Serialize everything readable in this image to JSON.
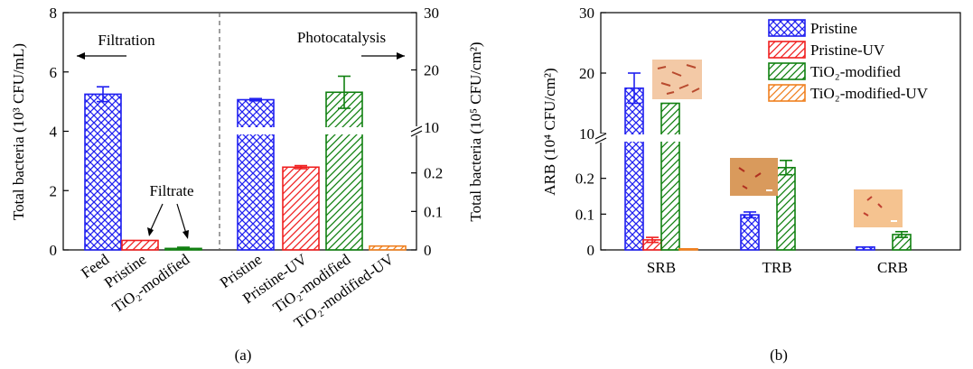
{
  "colors": {
    "blue": "#2020f0",
    "red": "#f02020",
    "green": "#108010",
    "orange": "#f08020",
    "axis": "#000000",
    "divider": "#606060"
  },
  "chart_data": [
    {
      "id": "a",
      "type": "bar",
      "caption": "(a)",
      "ylabel_left": "Total bacteria (10³ CFU/mL)",
      "ylabel_right": "Total bacteria (10⁵ CFU/cm²)",
      "left_ylim": [
        0,
        8
      ],
      "left_ticks": [
        "0",
        "2",
        "4",
        "6",
        "8"
      ],
      "right_ticks_lower": [
        "0",
        "0.1",
        "0.2"
      ],
      "right_ticks_upper": [
        "10",
        "20",
        "30"
      ],
      "right_ylim_lower": [
        0,
        0.3
      ],
      "right_ylim_upper": [
        10,
        30
      ],
      "annotations": {
        "filtration": "Filtration",
        "photocatalysis": "Photocatalysis",
        "filtrate": "Filtrate"
      },
      "filtration": {
        "categories": [
          "Feed",
          "Pristine",
          "TiO₂-modified"
        ],
        "values": [
          5.25,
          0.32,
          0.05
        ],
        "errors": [
          0.25,
          0,
          0.04
        ],
        "colors": [
          "blue",
          "red",
          "green"
        ],
        "patterns": [
          "cross",
          "hatch",
          "hatch"
        ]
      },
      "photocatalysis": {
        "categories": [
          "Pristine",
          "Pristine-UV",
          "TiO₂-modified",
          "TiO₂-modified-UV"
        ],
        "values": [
          14.8,
          0.215,
          16.1,
          0.01
        ],
        "errors": [
          0.2,
          0.004,
          2.8,
          0
        ],
        "colors": [
          "blue",
          "red",
          "green",
          "orange"
        ],
        "patterns": [
          "cross",
          "hatch",
          "hatch",
          "hatch"
        ]
      }
    },
    {
      "id": "b",
      "type": "bar",
      "caption": "(b)",
      "ylabel": "ARB (10⁴ CFU/cm²)",
      "ylim_lower": [
        0,
        0.3
      ],
      "ylim_upper": [
        10,
        30
      ],
      "ticks_lower": [
        "0",
        "0.1",
        "0.2"
      ],
      "ticks_upper": [
        "10",
        "20",
        "30"
      ],
      "categories": [
        "SRB",
        "TRB",
        "CRB"
      ],
      "series": [
        {
          "name": "Pristine",
          "color": "blue",
          "pattern": "cross",
          "values": [
            17.5,
            0.098,
            0.008
          ],
          "errors": [
            2.5,
            0.008,
            0
          ]
        },
        {
          "name": "Pristine-UV",
          "color": "red",
          "pattern": "hatch",
          "values": [
            0.028,
            0,
            0
          ],
          "errors": [
            0.007,
            0,
            0
          ]
        },
        {
          "name": "TiO₂-modified",
          "color": "green",
          "pattern": "hatch",
          "values": [
            15.0,
            0.23,
            0.043
          ],
          "errors": [
            0,
            0.02,
            0.008
          ]
        },
        {
          "name": "TiO₂-modified-UV",
          "color": "orange",
          "pattern": "hatch",
          "values": [
            0.003,
            0,
            0
          ],
          "errors": [
            0,
            0,
            0
          ]
        }
      ],
      "legend_position": "top-right"
    }
  ]
}
